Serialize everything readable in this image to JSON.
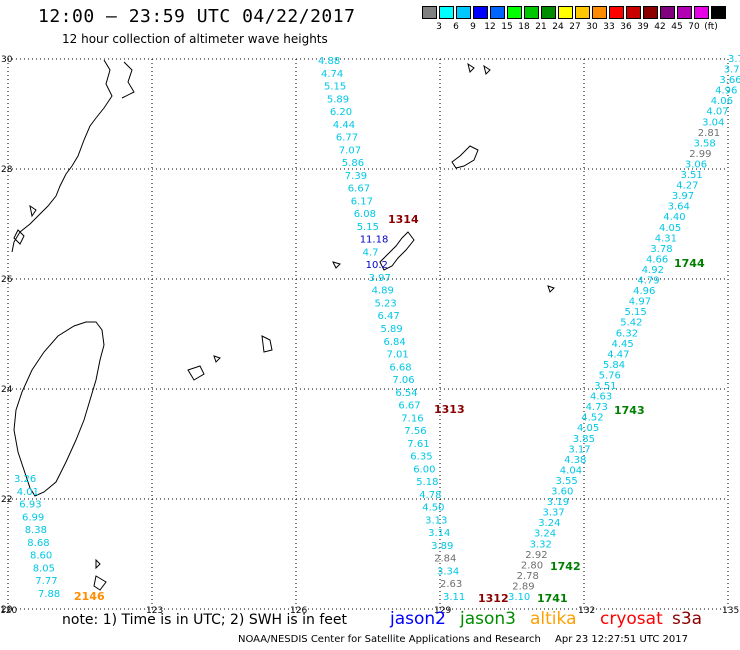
{
  "header": {
    "title": "12:00 – 23:59 UTC 04/22/2017",
    "subtitle": "12 hour collection of altimeter wave heights"
  },
  "colorbar": {
    "colors": [
      "#808080",
      "#00ffff",
      "#00c8ff",
      "#0000ff",
      "#0064ff",
      "#00ff00",
      "#00c800",
      "#008c00",
      "#ffff00",
      "#ffc800",
      "#ff8c00",
      "#ff0000",
      "#c80000",
      "#8c0000",
      "#800080",
      "#b400b4",
      "#e600e6",
      "#000000"
    ],
    "labels": [
      "3",
      "6",
      "9",
      "12",
      "15",
      "18",
      "21",
      "24",
      "27",
      "30",
      "33",
      "36",
      "39",
      "42",
      "45",
      "70",
      "(ft)"
    ]
  },
  "axes": {
    "lon_labels": [
      "120",
      "123",
      "126",
      "129",
      "132",
      "135"
    ],
    "lat_labels": [
      "30",
      "28",
      "26",
      "24",
      "22",
      "20"
    ]
  },
  "tracks": [
    {
      "id": "track1",
      "points": [
        {
          "t": "4.88",
          "c": "#00c8e6"
        },
        {
          "t": "4.74",
          "c": "#00c8e6"
        },
        {
          "t": "5.15",
          "c": "#00c8e6"
        },
        {
          "t": "5.89",
          "c": "#00c8e6"
        },
        {
          "t": "6.20",
          "c": "#00c8e6"
        },
        {
          "t": "4.44",
          "c": "#00c8e6"
        },
        {
          "t": "6.77",
          "c": "#00c8e6"
        },
        {
          "t": "7.07",
          "c": "#00c8e6"
        },
        {
          "t": "5.86",
          "c": "#00c8e6"
        },
        {
          "t": "7.39",
          "c": "#00c8e6"
        },
        {
          "t": "6.67",
          "c": "#00c8e6"
        },
        {
          "t": "6.17",
          "c": "#00c8e6"
        },
        {
          "t": "6.08",
          "c": "#00c8e6"
        },
        {
          "t": "5.15",
          "c": "#00c8e6"
        },
        {
          "t": "11.18",
          "c": "#0000c8"
        },
        {
          "t": "4.7",
          "c": "#00c8e6"
        },
        {
          "t": "10.2",
          "c": "#0000c8"
        },
        {
          "t": "3.97",
          "c": "#00c8e6"
        },
        {
          "t": "4.89",
          "c": "#00c8e6"
        },
        {
          "t": "5.23",
          "c": "#00c8e6"
        },
        {
          "t": "6.47",
          "c": "#00c8e6"
        },
        {
          "t": "5.89",
          "c": "#00c8e6"
        },
        {
          "t": "6.84",
          "c": "#00c8e6"
        },
        {
          "t": "7.01",
          "c": "#00c8e6"
        },
        {
          "t": "6.68",
          "c": "#00c8e6"
        },
        {
          "t": "7.06",
          "c": "#00c8e6"
        },
        {
          "t": "6.54",
          "c": "#00c8e6"
        },
        {
          "t": "6.67",
          "c": "#00c8e6"
        },
        {
          "t": "7.16",
          "c": "#00c8e6"
        },
        {
          "t": "7.56",
          "c": "#00c8e6"
        },
        {
          "t": "7.61",
          "c": "#00c8e6"
        },
        {
          "t": "6.35",
          "c": "#00c8e6"
        },
        {
          "t": "6.00",
          "c": "#00c8e6"
        },
        {
          "t": "5.18",
          "c": "#00c8e6"
        },
        {
          "t": "4.78",
          "c": "#00c8e6"
        },
        {
          "t": "4.50",
          "c": "#00c8e6"
        },
        {
          "t": "3.13",
          "c": "#00c8e6"
        },
        {
          "t": "3.14",
          "c": "#00c8e6"
        },
        {
          "t": "3.89",
          "c": "#00c8e6"
        },
        {
          "t": "2.84",
          "c": "#707070"
        },
        {
          "t": "3.34",
          "c": "#00c8e6"
        },
        {
          "t": "2.63",
          "c": "#707070"
        },
        {
          "t": "3.11",
          "c": "#00c8e6"
        }
      ]
    },
    {
      "id": "track2",
      "points": [
        {
          "t": "3.7",
          "c": "#00c8e6"
        },
        {
          "t": "3.7",
          "c": "#00c8e6"
        },
        {
          "t": "3.66",
          "c": "#00c8e6"
        },
        {
          "t": "4.96",
          "c": "#00c8e6"
        },
        {
          "t": "4.06",
          "c": "#00c8e6"
        },
        {
          "t": "4.07",
          "c": "#00c8e6"
        },
        {
          "t": "3.04",
          "c": "#00c8e6"
        },
        {
          "t": "2.81",
          "c": "#707070"
        },
        {
          "t": "3.58",
          "c": "#00c8e6"
        },
        {
          "t": "2.99",
          "c": "#707070"
        },
        {
          "t": "3.06",
          "c": "#00c8e6"
        },
        {
          "t": "3.51",
          "c": "#00c8e6"
        },
        {
          "t": "4.27",
          "c": "#00c8e6"
        },
        {
          "t": "3.97",
          "c": "#00c8e6"
        },
        {
          "t": "3.64",
          "c": "#00c8e6"
        },
        {
          "t": "4.40",
          "c": "#00c8e6"
        },
        {
          "t": "4.05",
          "c": "#00c8e6"
        },
        {
          "t": "4.31",
          "c": "#00c8e6"
        },
        {
          "t": "3.78",
          "c": "#00c8e6"
        },
        {
          "t": "4.66",
          "c": "#00c8e6"
        },
        {
          "t": "4.92",
          "c": "#00c8e6"
        },
        {
          "t": "4.79",
          "c": "#00c8e6"
        },
        {
          "t": "4.96",
          "c": "#00c8e6"
        },
        {
          "t": "4.97",
          "c": "#00c8e6"
        },
        {
          "t": "5.15",
          "c": "#00c8e6"
        },
        {
          "t": "5.42",
          "c": "#00c8e6"
        },
        {
          "t": "6.32",
          "c": "#00c8e6"
        },
        {
          "t": "4.45",
          "c": "#00c8e6"
        },
        {
          "t": "4.47",
          "c": "#00c8e6"
        },
        {
          "t": "5.84",
          "c": "#00c8e6"
        },
        {
          "t": "5.76",
          "c": "#00c8e6"
        },
        {
          "t": "3.51",
          "c": "#00c8e6"
        },
        {
          "t": "4.63",
          "c": "#00c8e6"
        },
        {
          "t": "4.73",
          "c": "#00c8e6"
        },
        {
          "t": "4.52",
          "c": "#00c8e6"
        },
        {
          "t": "4.05",
          "c": "#00c8e6"
        },
        {
          "t": "3.85",
          "c": "#00c8e6"
        },
        {
          "t": "3.17",
          "c": "#00c8e6"
        },
        {
          "t": "4.38",
          "c": "#00c8e6"
        },
        {
          "t": "4.04",
          "c": "#00c8e6"
        },
        {
          "t": "3.55",
          "c": "#00c8e6"
        },
        {
          "t": "3.60",
          "c": "#00c8e6"
        },
        {
          "t": "3.19",
          "c": "#00c8e6"
        },
        {
          "t": "3.37",
          "c": "#00c8e6"
        },
        {
          "t": "3.24",
          "c": "#00c8e6"
        },
        {
          "t": "3.24",
          "c": "#00c8e6"
        },
        {
          "t": "3.32",
          "c": "#00c8e6"
        },
        {
          "t": "2.92",
          "c": "#707070"
        },
        {
          "t": "2.80",
          "c": "#707070"
        },
        {
          "t": "2.78",
          "c": "#707070"
        },
        {
          "t": "2.89",
          "c": "#707070"
        },
        {
          "t": "3.10",
          "c": "#00c8e6"
        }
      ]
    },
    {
      "id": "track3",
      "points": [
        {
          "t": "3.26",
          "c": "#00c8e6"
        },
        {
          "t": "4.01",
          "c": "#00c8e6"
        },
        {
          "t": "6.93",
          "c": "#00c8e6"
        },
        {
          "t": "6.99",
          "c": "#00c8e6"
        },
        {
          "t": "8.38",
          "c": "#00c8e6"
        },
        {
          "t": "8.68",
          "c": "#00c8e6"
        },
        {
          "t": "8.60",
          "c": "#00c8e6"
        },
        {
          "t": "8.05",
          "c": "#00c8e6"
        },
        {
          "t": "7.77",
          "c": "#00c8e6"
        },
        {
          "t": "7.88",
          "c": "#00c8e6"
        }
      ]
    }
  ],
  "time_labels": [
    {
      "t": "1314",
      "c": "#8b0000"
    },
    {
      "t": "1313",
      "c": "#8b0000"
    },
    {
      "t": "1312",
      "c": "#8b0000"
    },
    {
      "t": "1744",
      "c": "#008000"
    },
    {
      "t": "1743",
      "c": "#008000"
    },
    {
      "t": "1742",
      "c": "#008000"
    },
    {
      "t": "1741",
      "c": "#008000"
    },
    {
      "t": "2146",
      "c": "#ff8c00"
    }
  ],
  "footer": {
    "note": "note: 1) Time is in UTC; 2) SWH is in feet",
    "satellites": [
      {
        "name": "jason2",
        "color": "#0000ff"
      },
      {
        "name": "jason3",
        "color": "#008c00"
      },
      {
        "name": "altika",
        "color": "#ffa000"
      },
      {
        "name": "cryosat",
        "color": "#ff0000"
      },
      {
        "name": "s3a",
        "color": "#8b0000"
      }
    ],
    "credit": "NOAA/NESDIS Center for Satellite Applications and Research",
    "timestamp": "Apr 23 12:27:51 UTC 2017"
  }
}
